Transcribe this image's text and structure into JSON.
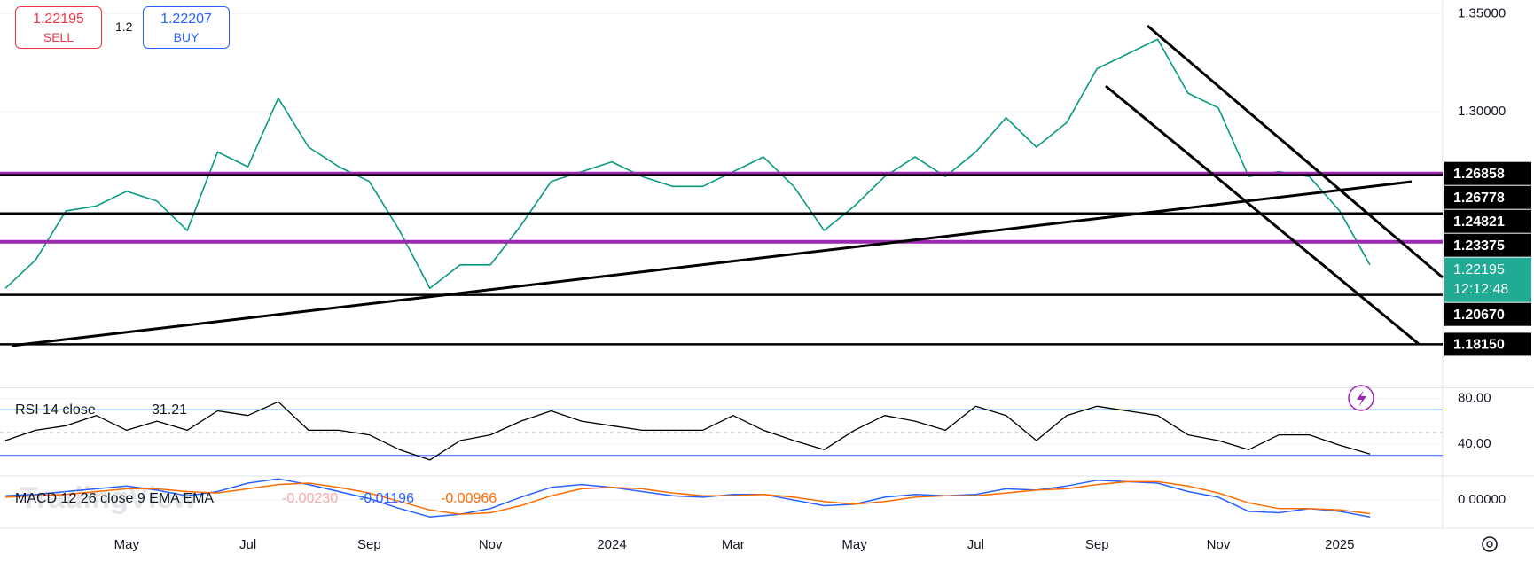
{
  "trade": {
    "sell": {
      "price": "1.22195",
      "label": "SELL"
    },
    "spread": "1.2",
    "buy": {
      "price": "1.22207",
      "label": "BUY"
    }
  },
  "watermark": "TradingView",
  "chart_data": [
    {
      "type": "line",
      "categories": [
        null,
        null,
        null,
        null,
        "May",
        null,
        null,
        null,
        "Jul",
        null,
        null,
        null,
        "Sep",
        null,
        null,
        null,
        "Nov",
        null,
        null,
        null,
        "2024",
        null,
        null,
        null,
        "Mar",
        null,
        null,
        null,
        "May",
        null,
        null,
        null,
        "Jul",
        null,
        null,
        null,
        "Sep",
        null,
        null,
        null,
        "Nov",
        null,
        null,
        null,
        "2025",
        null,
        null,
        null
      ],
      "values": [
        1.21,
        1.2245,
        1.2495,
        1.252,
        1.2595,
        1.2545,
        1.2395,
        1.2795,
        1.272,
        1.307,
        1.282,
        1.272,
        1.2645,
        1.2395,
        1.21,
        1.222,
        1.222,
        1.242,
        1.2645,
        1.2695,
        1.2745,
        1.267,
        1.262,
        1.262,
        1.2695,
        1.277,
        1.262,
        1.2395,
        1.252,
        1.267,
        1.277,
        1.267,
        1.2795,
        1.297,
        1.282,
        1.2945,
        1.322,
        1.3295,
        1.337,
        1.3095,
        1.302,
        1.267,
        1.2695,
        1.267,
        1.2495,
        1.22195,
        null,
        null
      ],
      "color": "#089981",
      "ylim": [
        1.16,
        1.357
      ],
      "yticks": [
        {
          "value": 1.35,
          "label": "1.35000"
        },
        {
          "value": 1.3,
          "label": "1.30000"
        }
      ],
      "levels": [
        {
          "value": 1.26858,
          "color": "#9c27b0"
        },
        {
          "value": 1.26778,
          "color": "#000000"
        },
        {
          "value": 1.24821,
          "color": "#000000"
        },
        {
          "value": 1.23375,
          "color": "#9c27b0"
        },
        {
          "value": 1.2067,
          "label": "1.20670",
          "color": "#000000"
        },
        {
          "value": 1.1815,
          "label": "1.18150",
          "color": "#000000"
        }
      ],
      "last_color": "#22ab94",
      "countdown": "12:12:48"
    },
    {
      "type": "line",
      "title": "RSI 14 close",
      "values": [
        43,
        52,
        56,
        65,
        52,
        60,
        52,
        69,
        65,
        77,
        52,
        52,
        48,
        35,
        26,
        43,
        48,
        60,
        69,
        60,
        56,
        52,
        52,
        52,
        65,
        52,
        43,
        35,
        52,
        65,
        60,
        52,
        73,
        65,
        43,
        65,
        73,
        69,
        65,
        48,
        43,
        35,
        48,
        48,
        39,
        31.21,
        null,
        null
      ],
      "color": "#000000",
      "ylim": [
        12,
        88
      ],
      "yticks": [
        {
          "value": 80,
          "label": "80.00"
        },
        {
          "value": 40,
          "label": "40.00"
        }
      ],
      "bands": [
        70,
        30
      ],
      "midline": 50,
      "band_color": "#2962ff"
    },
    {
      "type": "line",
      "title": "MACD 12 26 close 9 EMA EMA",
      "series": [
        {
          "color": "#2962ff",
          "values": [
            0.003,
            0.004,
            0.006,
            0.008,
            0.01,
            0.007,
            0.003,
            0.006,
            0.012,
            0.015,
            0.011,
            0.006,
            0.001,
            -0.006,
            -0.012,
            -0.01,
            -0.006,
            0.002,
            0.009,
            0.011,
            0.009,
            0.006,
            0.003,
            0.002,
            0.004,
            0.004,
            0.0,
            -0.004,
            -0.003,
            0.002,
            0.004,
            0.003,
            0.004,
            0.008,
            0.007,
            0.01,
            0.014,
            0.013,
            0.012,
            0.006,
            0.002,
            -0.008,
            -0.009,
            -0.006,
            -0.008,
            -0.01196,
            null,
            null
          ]
        },
        {
          "color": "#ff6d00",
          "values": [
            0.002,
            0.003,
            0.004,
            0.006,
            0.008,
            0.008,
            0.006,
            0.005,
            0.008,
            0.011,
            0.012,
            0.009,
            0.005,
            -0.001,
            -0.007,
            -0.01,
            -0.009,
            -0.004,
            0.003,
            0.008,
            0.009,
            0.008,
            0.005,
            0.003,
            0.003,
            0.004,
            0.002,
            -0.001,
            -0.003,
            -0.001,
            0.002,
            0.003,
            0.003,
            0.005,
            0.007,
            0.008,
            0.011,
            0.013,
            0.013,
            0.01,
            0.005,
            -0.002,
            -0.006,
            -0.006,
            -0.007,
            -0.00966,
            null,
            null
          ]
        }
      ],
      "histogram_label": "-0.00230",
      "ylim": [
        -0.02,
        0.017
      ],
      "yticks": [
        {
          "value": 0,
          "label": "0.00000"
        }
      ]
    }
  ]
}
